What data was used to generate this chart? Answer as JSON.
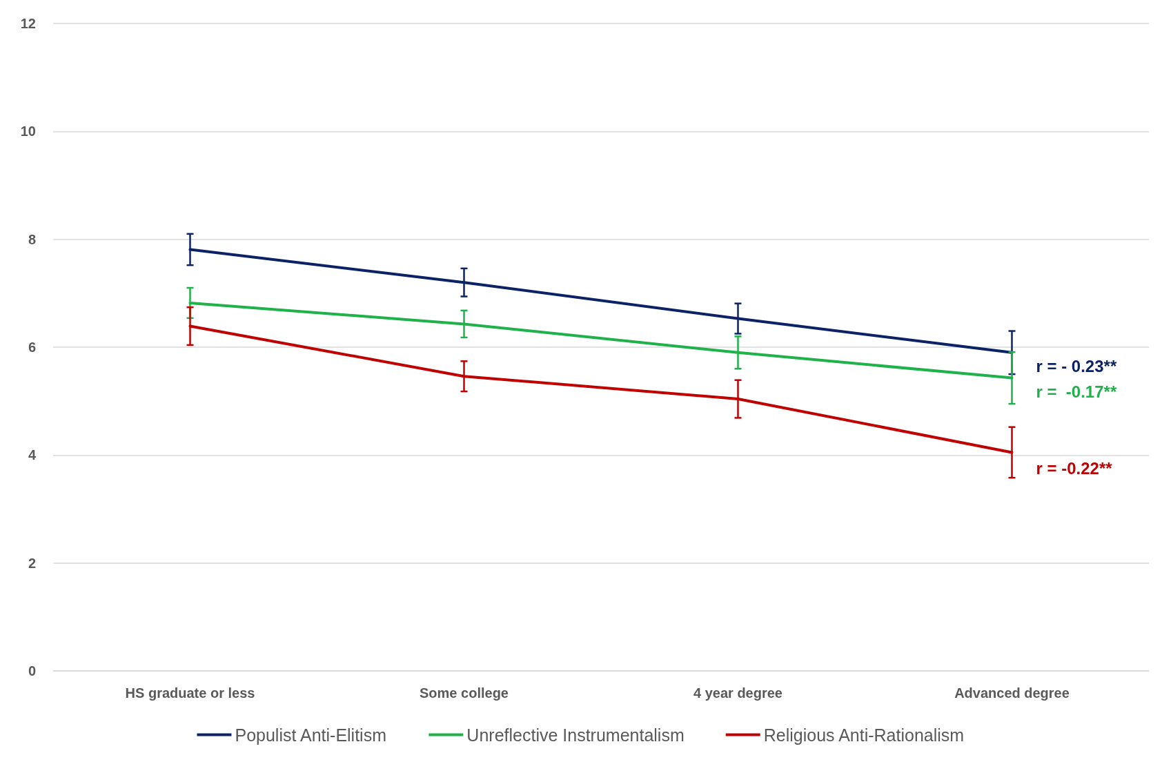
{
  "chart_data": {
    "type": "line",
    "categories": [
      "HS graduate or less",
      "Some college",
      "4 year degree",
      "Advanced degree"
    ],
    "series": [
      {
        "name": "Populist Anti-Elitism",
        "color": "#0c2266",
        "values": [
          7.81,
          7.2,
          6.53,
          5.9
        ],
        "errors": [
          0.29,
          0.26,
          0.28,
          0.4
        ]
      },
      {
        "name": "Unreflective Instrumentalism",
        "color": "#1fb24a",
        "values": [
          6.82,
          6.43,
          5.9,
          5.43
        ],
        "errors": [
          0.28,
          0.25,
          0.3,
          0.48
        ]
      },
      {
        "name": "Religious Anti-Rationalism",
        "color": "#c00000",
        "values": [
          6.39,
          5.46,
          5.04,
          4.05
        ],
        "errors": [
          0.35,
          0.28,
          0.35,
          0.47
        ]
      }
    ],
    "annotations": [
      {
        "text": "r = - 0.23**",
        "x": "Advanced degree",
        "y": 5.65
      },
      {
        "text": "r =  -0.17**",
        "x": "Advanced degree",
        "y": 5.17
      },
      {
        "text": "r = -0.22**",
        "x": "Advanced degree",
        "y": 3.75
      }
    ],
    "ylim": [
      0,
      12
    ],
    "yticks": [
      0,
      2,
      4,
      6,
      8,
      10,
      12
    ],
    "grid": "y",
    "legend": "bottom",
    "marker": "none",
    "line_style": "solid"
  }
}
